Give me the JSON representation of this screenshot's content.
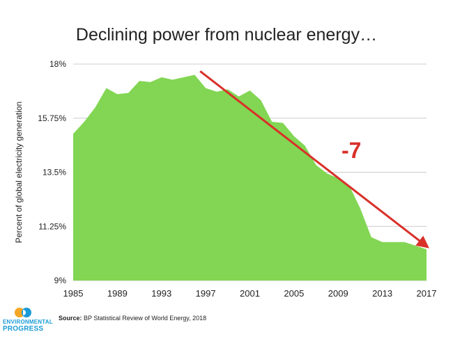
{
  "title": "Declining power from nuclear energy…",
  "source": {
    "label": "Source:",
    "text": "BP Statistical Review of World Energy, 2018"
  },
  "logo": {
    "line1": "ENVIRONMENTAL",
    "line2": "PROGRESS"
  },
  "colors": {
    "area": "#82d653",
    "arrow": "#d9302a",
    "grid": "#cccccc",
    "logo_orange": "#f5a623",
    "logo_blue": "#1a9bd7"
  },
  "annotation": {
    "text": "-7"
  },
  "chart_data": {
    "type": "area",
    "ylabel": "Percent of global electricity generation",
    "xlabel": "",
    "ylim": [
      9,
      18
    ],
    "xlim": [
      1985,
      2017
    ],
    "yticks": [
      18,
      15.75,
      13.5,
      11.25,
      9
    ],
    "ytick_labels": [
      "18%",
      "15.75%",
      "13.5%",
      "11.25%",
      "9%"
    ],
    "xticks": [
      1985,
      1989,
      1993,
      1997,
      2001,
      2005,
      2009,
      2013,
      2017
    ],
    "grid": "horizontal",
    "series": [
      {
        "x": [
          1985,
          1986,
          1987,
          1988,
          1989,
          1990,
          1991,
          1992,
          1993,
          1994,
          1995,
          1996,
          1997,
          1998,
          1999,
          2000,
          2001,
          2002,
          2003,
          2004,
          2005,
          2006,
          2007,
          2008,
          2009,
          2010,
          2011,
          2012,
          2013,
          2014,
          2015,
          2016,
          2017
        ],
        "values": [
          15.1,
          15.6,
          16.2,
          17.0,
          16.75,
          16.8,
          17.3,
          17.25,
          17.45,
          17.35,
          17.45,
          17.55,
          17.0,
          16.85,
          16.95,
          16.65,
          16.9,
          16.5,
          15.6,
          15.55,
          15.0,
          14.6,
          13.8,
          13.45,
          13.25,
          12.95,
          12.0,
          10.8,
          10.6,
          10.6,
          10.6,
          10.45,
          10.3
        ]
      }
    ],
    "trend_arrow": {
      "from": [
        1996.5,
        17.7
      ],
      "to": [
        2016.8,
        10.5
      ]
    }
  }
}
